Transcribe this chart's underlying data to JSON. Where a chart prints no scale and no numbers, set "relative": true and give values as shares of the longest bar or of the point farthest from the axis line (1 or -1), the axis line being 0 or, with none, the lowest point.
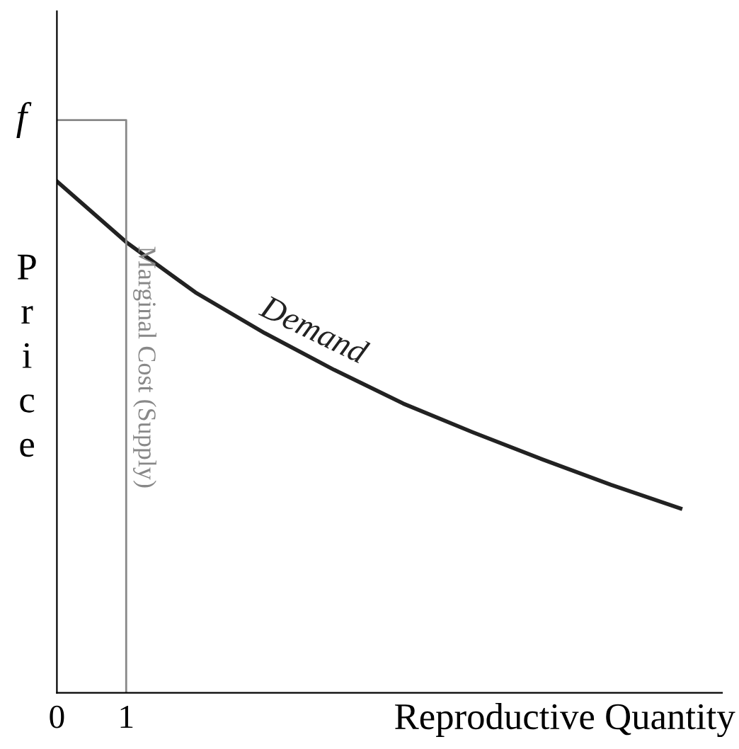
{
  "chart_data": {
    "type": "line",
    "relative": true,
    "xlabel": "Reproductive Quantity",
    "ylabel": "Price",
    "xlim": [
      0,
      9.6
    ],
    "xticks": [
      0,
      1
    ],
    "series": [
      {
        "name": "Demand",
        "color": "#222222",
        "x": [
          0,
          1,
          2,
          3,
          4,
          5,
          6,
          7,
          8,
          9
        ],
        "values": [
          0.893,
          0.787,
          0.699,
          0.628,
          0.564,
          0.505,
          0.455,
          0.408,
          0.363,
          0.322
        ]
      },
      {
        "name": "Marginal Cost (Supply)",
        "color": "#888888",
        "x": [
          0,
          1,
          1
        ],
        "values": [
          1,
          1,
          0
        ]
      }
    ],
    "annotations": [
      {
        "text": "f",
        "x": 0,
        "y": 1
      }
    ],
    "grid": false,
    "legend": false,
    "marker": "none",
    "line_style": "solid"
  }
}
